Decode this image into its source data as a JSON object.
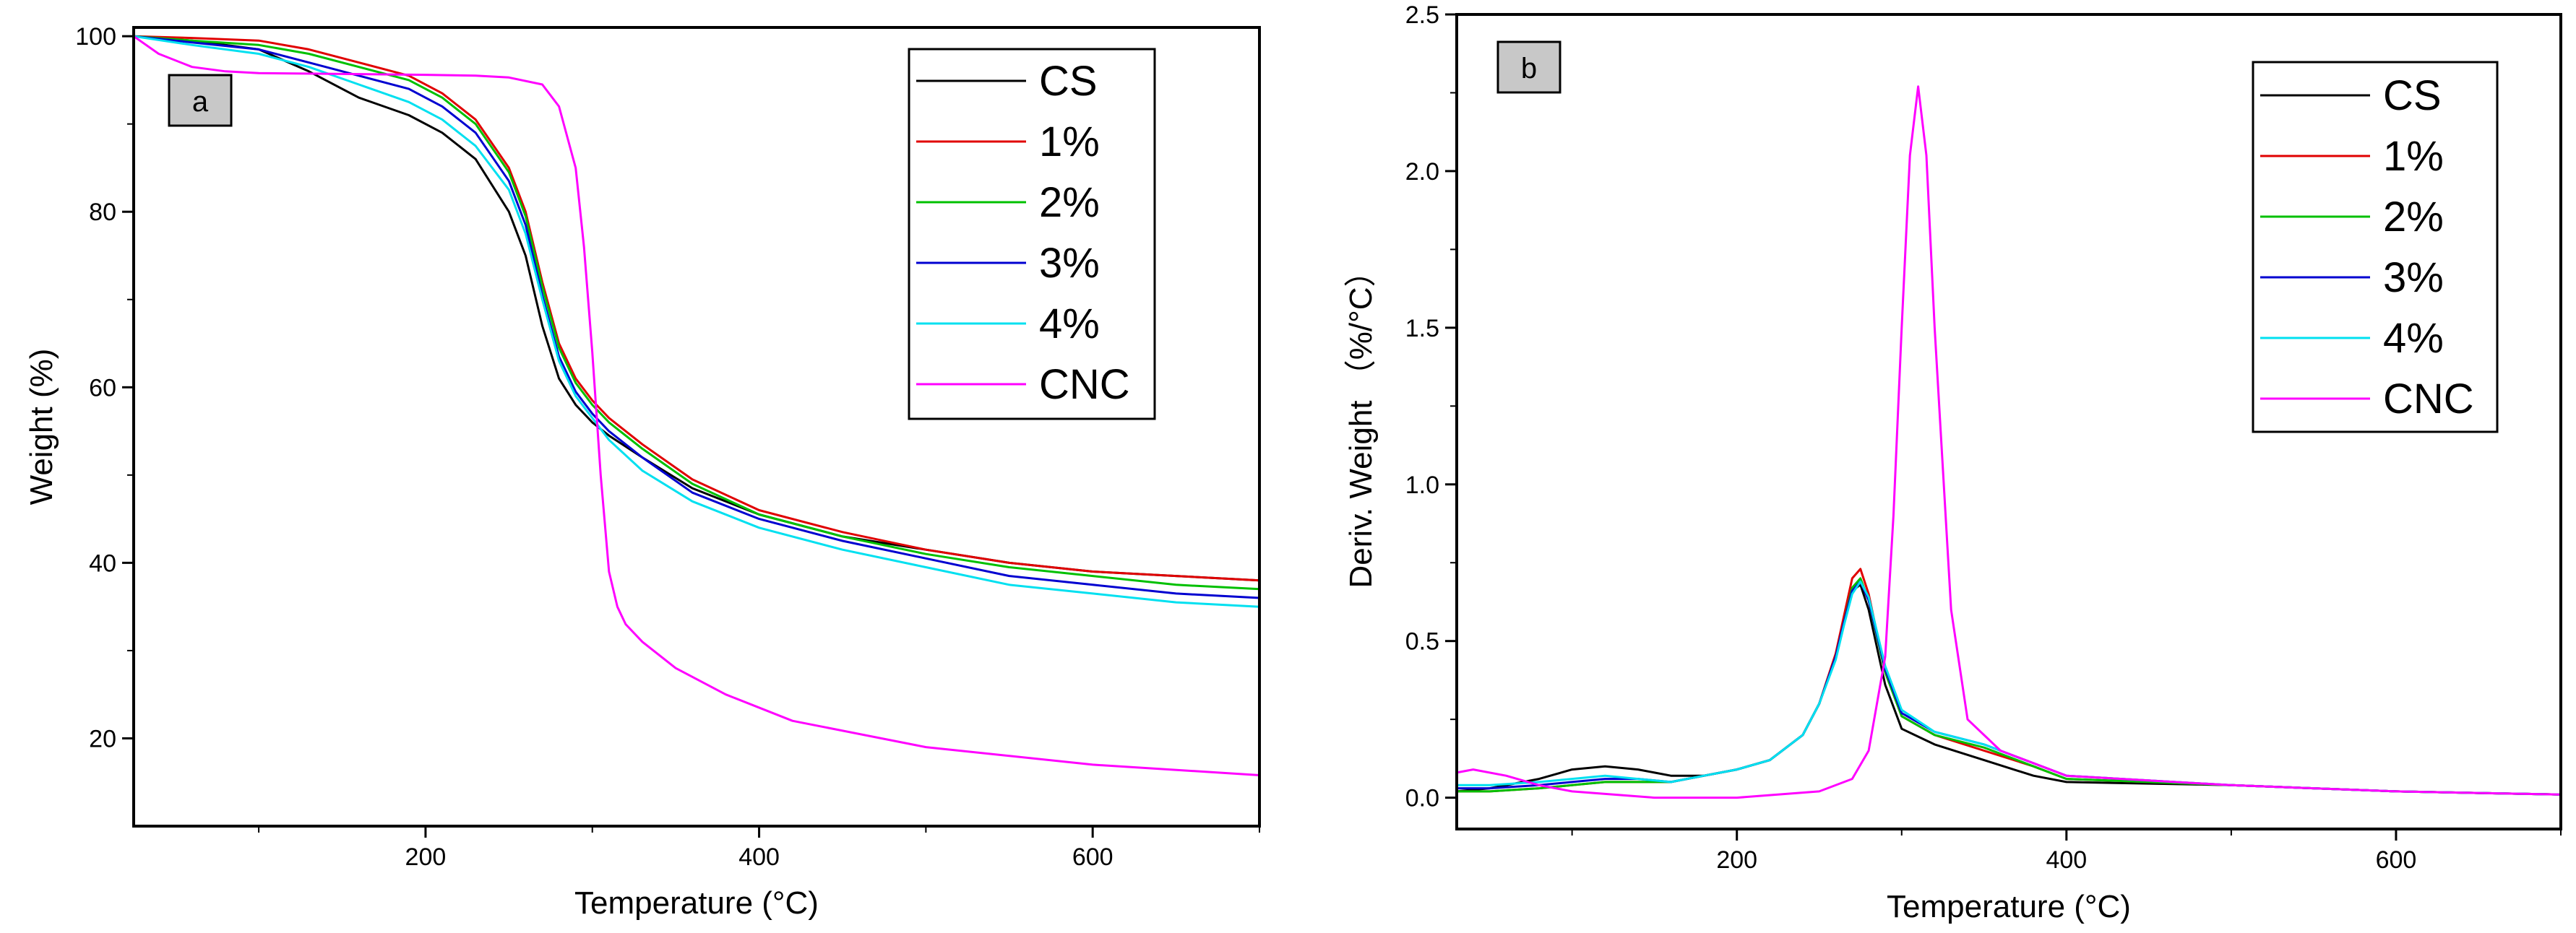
{
  "chart_data": [
    {
      "type": "line",
      "panel_label": "a",
      "xlabel": "Temperature (°C)",
      "ylabel": "Weight (%)",
      "xlim": [
        25,
        700
      ],
      "ylim": [
        10,
        101
      ],
      "xticks": [
        200,
        400,
        600
      ],
      "xtick_labels": [
        "200",
        "400",
        "600"
      ],
      "yticks": [
        20,
        40,
        60,
        80,
        100
      ],
      "ytick_labels": [
        "20",
        "40",
        "60",
        "80",
        "100"
      ],
      "legend_position": "top-right",
      "series": [
        {
          "name": "CS",
          "color": "#000000",
          "x": [
            25,
            60,
            100,
            130,
            160,
            190,
            210,
            230,
            250,
            260,
            270,
            280,
            290,
            300,
            310,
            330,
            360,
            400,
            450,
            500,
            550,
            600,
            650,
            700
          ],
          "y": [
            100,
            99.5,
            98.5,
            96,
            93,
            91,
            89,
            86,
            80,
            75,
            67,
            61,
            58,
            56,
            54.5,
            52,
            48.5,
            45.5,
            43,
            41.5,
            40,
            39,
            38.5,
            38
          ]
        },
        {
          "name": "1%",
          "color": "#e00000",
          "x": [
            25,
            60,
            100,
            130,
            160,
            190,
            210,
            230,
            250,
            260,
            270,
            280,
            290,
            300,
            310,
            330,
            360,
            400,
            450,
            500,
            550,
            600,
            650,
            700
          ],
          "y": [
            100,
            99.8,
            99.5,
            98.5,
            97,
            95.5,
            93.5,
            90.5,
            85,
            80,
            72,
            65,
            61,
            58.5,
            56.5,
            53.5,
            49.5,
            46,
            43.5,
            41.5,
            40,
            39,
            38.5,
            38
          ]
        },
        {
          "name": "2%",
          "color": "#00c000",
          "x": [
            25,
            60,
            100,
            130,
            160,
            190,
            210,
            230,
            250,
            260,
            270,
            280,
            290,
            300,
            310,
            330,
            360,
            400,
            450,
            500,
            550,
            600,
            650,
            700
          ],
          "y": [
            100,
            99.5,
            99,
            98,
            96.5,
            95,
            93,
            90,
            84.5,
            79.5,
            71.5,
            64.5,
            60.5,
            58,
            56,
            53,
            49,
            45.5,
            43,
            41,
            39.5,
            38.5,
            37.5,
            37
          ]
        },
        {
          "name": "3%",
          "color": "#0000d0",
          "x": [
            25,
            60,
            100,
            130,
            160,
            190,
            210,
            230,
            250,
            260,
            270,
            280,
            290,
            300,
            310,
            330,
            360,
            400,
            450,
            500,
            550,
            600,
            650,
            700
          ],
          "y": [
            100,
            99.3,
            98.5,
            97,
            95.5,
            94,
            92,
            89,
            83.5,
            78.5,
            70.5,
            63.5,
            59.5,
            57,
            55,
            52,
            48,
            45,
            42.5,
            40.5,
            38.5,
            37.5,
            36.5,
            36
          ]
        },
        {
          "name": "4%",
          "color": "#00e0f0",
          "x": [
            25,
            60,
            100,
            130,
            160,
            190,
            210,
            230,
            250,
            260,
            270,
            280,
            290,
            300,
            310,
            330,
            360,
            400,
            450,
            500,
            550,
            600,
            650,
            700
          ],
          "y": [
            100,
            99,
            98,
            96.5,
            94.5,
            92.5,
            90.5,
            87.5,
            82.5,
            77.5,
            70,
            63,
            59,
            56.5,
            54,
            50.5,
            47,
            44,
            41.5,
            39.5,
            37.5,
            36.5,
            35.5,
            35
          ]
        },
        {
          "name": "CNC",
          "color": "#ff00ff",
          "x": [
            25,
            40,
            60,
            80,
            100,
            150,
            200,
            230,
            250,
            270,
            280,
            290,
            295,
            300,
            305,
            310,
            315,
            320,
            330,
            350,
            380,
            420,
            500,
            600,
            700
          ],
          "y": [
            100,
            98,
            96.5,
            96,
            95.8,
            95.7,
            95.6,
            95.5,
            95.3,
            94.5,
            92,
            85,
            76,
            64,
            50,
            39,
            35,
            33,
            31,
            28,
            25,
            22,
            19,
            17,
            15.8
          ]
        }
      ]
    },
    {
      "type": "line",
      "panel_label": "b",
      "xlabel": "Temperature (°C)",
      "ylabel": "Deriv. Weight （%/°C）",
      "xlim": [
        30,
        700
      ],
      "ylim": [
        -0.1,
        2.5
      ],
      "xticks": [
        200,
        400,
        600
      ],
      "xtick_labels": [
        "200",
        "400",
        "600"
      ],
      "yticks": [
        0.0,
        0.5,
        1.0,
        1.5,
        2.0,
        2.5
      ],
      "ytick_labels": [
        "0.0",
        "0.5",
        "1.0",
        "1.5",
        "2.0",
        "2.5"
      ],
      "legend_position": "top-right",
      "series": [
        {
          "name": "CS",
          "color": "#000000",
          "x": [
            30,
            50,
            80,
            100,
            120,
            140,
            160,
            180,
            200,
            220,
            240,
            250,
            260,
            265,
            270,
            275,
            280,
            290,
            300,
            320,
            350,
            380,
            400,
            500,
            600,
            700
          ],
          "y": [
            0.02,
            0.03,
            0.06,
            0.09,
            0.1,
            0.09,
            0.07,
            0.07,
            0.09,
            0.12,
            0.2,
            0.3,
            0.45,
            0.56,
            0.66,
            0.68,
            0.6,
            0.36,
            0.22,
            0.17,
            0.12,
            0.07,
            0.05,
            0.04,
            0.02,
            0.01
          ]
        },
        {
          "name": "1%",
          "color": "#e00000",
          "x": [
            30,
            50,
            80,
            100,
            120,
            140,
            160,
            180,
            200,
            220,
            240,
            250,
            260,
            265,
            270,
            275,
            280,
            290,
            300,
            320,
            350,
            380,
            400,
            500,
            600,
            700
          ],
          "y": [
            0.02,
            0.02,
            0.03,
            0.04,
            0.05,
            0.05,
            0.05,
            0.07,
            0.09,
            0.12,
            0.2,
            0.3,
            0.46,
            0.58,
            0.7,
            0.73,
            0.65,
            0.4,
            0.26,
            0.2,
            0.15,
            0.1,
            0.06,
            0.04,
            0.02,
            0.01
          ]
        },
        {
          "name": "2%",
          "color": "#00c000",
          "x": [
            30,
            50,
            80,
            100,
            120,
            140,
            160,
            180,
            200,
            220,
            240,
            250,
            260,
            265,
            270,
            275,
            280,
            290,
            300,
            320,
            350,
            380,
            400,
            500,
            600,
            700
          ],
          "y": [
            0.02,
            0.02,
            0.03,
            0.04,
            0.05,
            0.05,
            0.05,
            0.07,
            0.09,
            0.12,
            0.2,
            0.3,
            0.45,
            0.56,
            0.67,
            0.7,
            0.63,
            0.4,
            0.26,
            0.2,
            0.16,
            0.1,
            0.06,
            0.04,
            0.02,
            0.01
          ]
        },
        {
          "name": "3%",
          "color": "#0000d0",
          "x": [
            30,
            50,
            80,
            100,
            120,
            140,
            160,
            180,
            200,
            220,
            240,
            250,
            260,
            265,
            270,
            275,
            280,
            290,
            300,
            320,
            350,
            380,
            400,
            500,
            600,
            700
          ],
          "y": [
            0.03,
            0.03,
            0.04,
            0.05,
            0.06,
            0.06,
            0.05,
            0.07,
            0.09,
            0.12,
            0.2,
            0.3,
            0.45,
            0.56,
            0.66,
            0.69,
            0.63,
            0.41,
            0.27,
            0.21,
            0.17,
            0.11,
            0.07,
            0.04,
            0.02,
            0.01
          ]
        },
        {
          "name": "4%",
          "color": "#00e0f0",
          "x": [
            30,
            50,
            80,
            100,
            120,
            140,
            160,
            180,
            200,
            220,
            240,
            250,
            260,
            265,
            270,
            275,
            280,
            290,
            300,
            320,
            350,
            380,
            400,
            500,
            600,
            700
          ],
          "y": [
            0.04,
            0.04,
            0.05,
            0.06,
            0.07,
            0.06,
            0.05,
            0.07,
            0.09,
            0.12,
            0.2,
            0.3,
            0.44,
            0.55,
            0.65,
            0.69,
            0.64,
            0.42,
            0.28,
            0.21,
            0.17,
            0.11,
            0.07,
            0.04,
            0.02,
            0.01
          ]
        },
        {
          "name": "CNC",
          "color": "#ff00ff",
          "x": [
            30,
            40,
            60,
            80,
            100,
            150,
            200,
            250,
            270,
            280,
            290,
            295,
            300,
            305,
            310,
            315,
            320,
            330,
            340,
            360,
            400,
            500,
            600,
            700
          ],
          "y": [
            0.08,
            0.09,
            0.07,
            0.04,
            0.02,
            0.0,
            0.0,
            0.02,
            0.06,
            0.15,
            0.45,
            0.9,
            1.5,
            2.05,
            2.27,
            2.05,
            1.5,
            0.6,
            0.25,
            0.15,
            0.07,
            0.04,
            0.02,
            0.01
          ]
        }
      ]
    }
  ]
}
